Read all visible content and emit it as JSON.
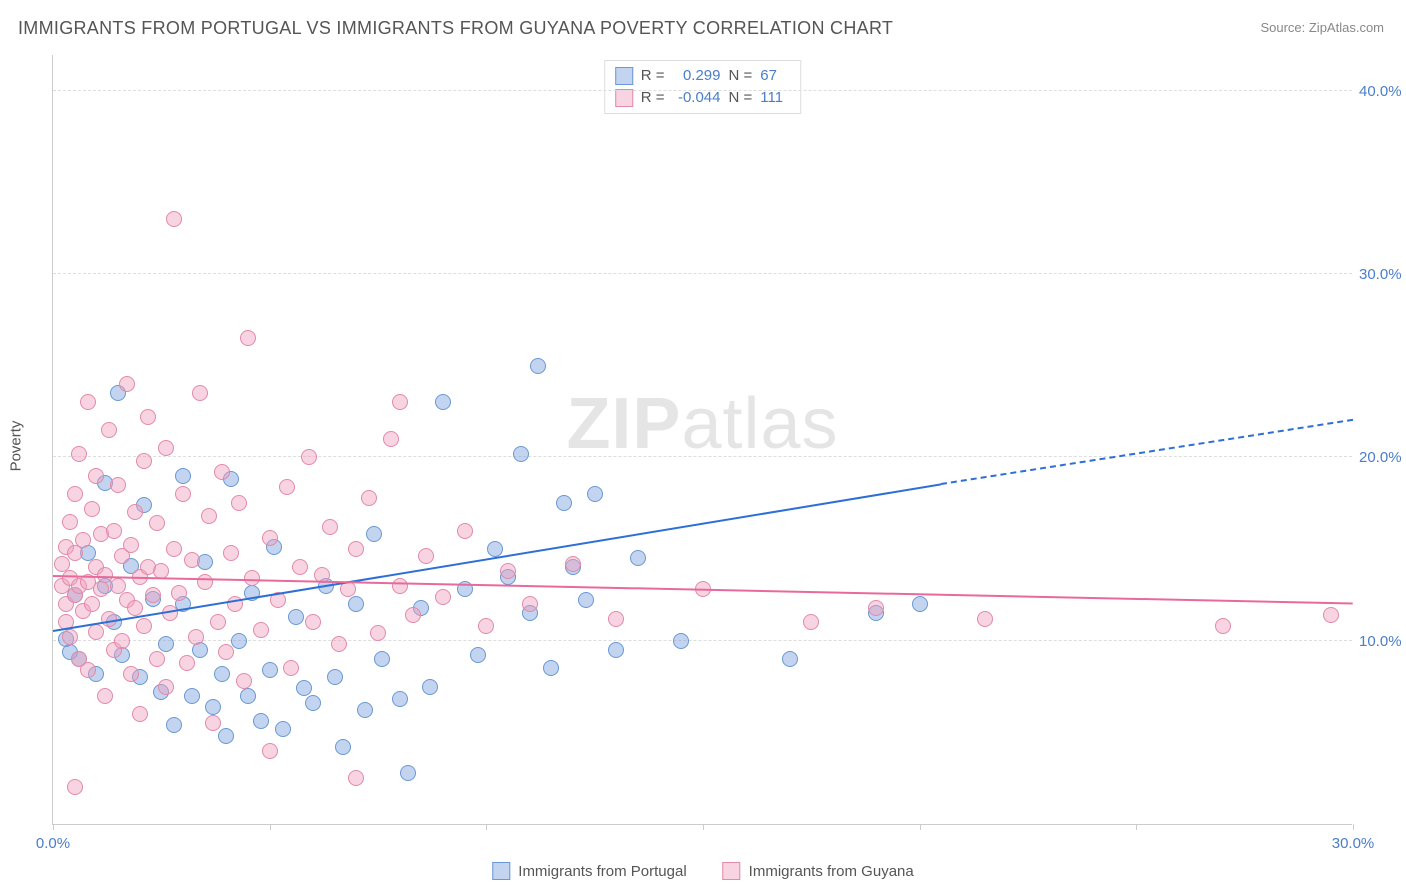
{
  "title": "IMMIGRANTS FROM PORTUGAL VS IMMIGRANTS FROM GUYANA POVERTY CORRELATION CHART",
  "source_label": "Source: ZipAtlas.com",
  "ylabel": "Poverty",
  "watermark_a": "ZIP",
  "watermark_b": "atlas",
  "chart": {
    "type": "scatter",
    "background_color": "#ffffff",
    "grid_color": "#dddddd",
    "axis_color": "#cccccc",
    "text_color": "#555555",
    "value_color": "#4a7ec9",
    "xlim": [
      0,
      30
    ],
    "ylim": [
      0,
      42
    ],
    "yticks": [
      {
        "v": 10,
        "label": "10.0%"
      },
      {
        "v": 20,
        "label": "20.0%"
      },
      {
        "v": 30,
        "label": "30.0%"
      },
      {
        "v": 40,
        "label": "40.0%"
      }
    ],
    "xtick_positions": [
      0,
      5,
      10,
      15,
      20,
      25,
      30
    ],
    "xtick_labels": {
      "0": "0.0%",
      "30": "30.0%"
    },
    "point_radius": 8,
    "point_border_width": 1,
    "series": [
      {
        "id": "portugal",
        "label": "Immigrants from Portugal",
        "fill": "rgba(120,160,220,0.45)",
        "stroke": "#6a98d4",
        "line_color": "#2e6fd6",
        "stats": {
          "R_label": "R =",
          "R": "0.299",
          "N_label": "N =",
          "N": "67"
        },
        "trend": {
          "x1": 0,
          "y1": 10.5,
          "x2": 20.5,
          "y2": 18.5,
          "dash_x2": 30,
          "dash_y2": 22.0
        },
        "points": [
          [
            0.3,
            10.1
          ],
          [
            0.4,
            9.4
          ],
          [
            0.5,
            12.5
          ],
          [
            0.6,
            9.0
          ],
          [
            0.8,
            14.8
          ],
          [
            1.0,
            8.2
          ],
          [
            1.2,
            13.0
          ],
          [
            1.2,
            18.6
          ],
          [
            1.4,
            11.0
          ],
          [
            1.5,
            23.5
          ],
          [
            1.6,
            9.2
          ],
          [
            1.8,
            14.1
          ],
          [
            2.0,
            8.0
          ],
          [
            2.1,
            17.4
          ],
          [
            2.3,
            12.3
          ],
          [
            2.5,
            7.2
          ],
          [
            2.6,
            9.8
          ],
          [
            2.8,
            5.4
          ],
          [
            3.0,
            19.0
          ],
          [
            3.0,
            12.0
          ],
          [
            3.2,
            7.0
          ],
          [
            3.4,
            9.5
          ],
          [
            3.5,
            14.3
          ],
          [
            3.7,
            6.4
          ],
          [
            3.9,
            8.2
          ],
          [
            4.0,
            4.8
          ],
          [
            4.1,
            18.8
          ],
          [
            4.3,
            10.0
          ],
          [
            4.5,
            7.0
          ],
          [
            4.6,
            12.6
          ],
          [
            4.8,
            5.6
          ],
          [
            5.0,
            8.4
          ],
          [
            5.1,
            15.1
          ],
          [
            5.3,
            5.2
          ],
          [
            5.6,
            11.3
          ],
          [
            5.8,
            7.4
          ],
          [
            6.0,
            6.6
          ],
          [
            6.3,
            13.0
          ],
          [
            6.5,
            8.0
          ],
          [
            6.7,
            4.2
          ],
          [
            7.0,
            12.0
          ],
          [
            7.2,
            6.2
          ],
          [
            7.4,
            15.8
          ],
          [
            7.6,
            9.0
          ],
          [
            8.0,
            6.8
          ],
          [
            8.2,
            2.8
          ],
          [
            8.5,
            11.8
          ],
          [
            8.7,
            7.5
          ],
          [
            9.0,
            23.0
          ],
          [
            9.5,
            12.8
          ],
          [
            9.8,
            9.2
          ],
          [
            10.2,
            15.0
          ],
          [
            10.5,
            13.5
          ],
          [
            10.8,
            20.2
          ],
          [
            11.0,
            11.5
          ],
          [
            11.2,
            25.0
          ],
          [
            11.5,
            8.5
          ],
          [
            11.8,
            17.5
          ],
          [
            12.0,
            14.0
          ],
          [
            12.3,
            12.2
          ],
          [
            12.5,
            18.0
          ],
          [
            13.0,
            9.5
          ],
          [
            13.5,
            14.5
          ],
          [
            14.5,
            10.0
          ],
          [
            17.0,
            9.0
          ],
          [
            19.0,
            11.5
          ],
          [
            20.0,
            12.0
          ]
        ]
      },
      {
        "id": "guyana",
        "label": "Immigrants from Guyana",
        "fill": "rgba(240,160,190,0.45)",
        "stroke": "#e28aa8",
        "line_color": "#e86a9a",
        "stats": {
          "R_label": "R =",
          "R": "-0.044",
          "N_label": "N =",
          "N": "111"
        },
        "trend": {
          "x1": 0,
          "y1": 13.5,
          "x2": 30,
          "y2": 12.0
        },
        "points": [
          [
            0.2,
            13.0
          ],
          [
            0.2,
            14.2
          ],
          [
            0.3,
            12.0
          ],
          [
            0.3,
            15.1
          ],
          [
            0.3,
            11.0
          ],
          [
            0.4,
            16.5
          ],
          [
            0.4,
            13.4
          ],
          [
            0.4,
            10.2
          ],
          [
            0.5,
            18.0
          ],
          [
            0.5,
            12.5
          ],
          [
            0.5,
            14.8
          ],
          [
            0.6,
            9.0
          ],
          [
            0.6,
            13.0
          ],
          [
            0.6,
            20.2
          ],
          [
            0.7,
            11.6
          ],
          [
            0.7,
            15.5
          ],
          [
            0.8,
            13.2
          ],
          [
            0.8,
            8.4
          ],
          [
            0.8,
            23.0
          ],
          [
            0.9,
            12.0
          ],
          [
            0.9,
            17.2
          ],
          [
            1.0,
            14.0
          ],
          [
            1.0,
            10.5
          ],
          [
            1.0,
            19.0
          ],
          [
            1.1,
            12.8
          ],
          [
            1.1,
            15.8
          ],
          [
            1.2,
            7.0
          ],
          [
            1.2,
            13.6
          ],
          [
            1.3,
            21.5
          ],
          [
            1.3,
            11.2
          ],
          [
            1.4,
            16.0
          ],
          [
            1.4,
            9.5
          ],
          [
            1.5,
            13.0
          ],
          [
            1.5,
            18.5
          ],
          [
            1.6,
            10.0
          ],
          [
            1.6,
            14.6
          ],
          [
            1.7,
            12.2
          ],
          [
            1.7,
            24.0
          ],
          [
            1.8,
            8.2
          ],
          [
            1.8,
            15.2
          ],
          [
            1.9,
            11.8
          ],
          [
            1.9,
            17.0
          ],
          [
            2.0,
            13.5
          ],
          [
            2.0,
            6.0
          ],
          [
            2.1,
            19.8
          ],
          [
            2.1,
            10.8
          ],
          [
            2.2,
            14.0
          ],
          [
            2.2,
            22.2
          ],
          [
            2.3,
            12.5
          ],
          [
            2.4,
            16.4
          ],
          [
            2.4,
            9.0
          ],
          [
            2.5,
            13.8
          ],
          [
            2.6,
            7.5
          ],
          [
            2.6,
            20.5
          ],
          [
            2.7,
            11.5
          ],
          [
            2.8,
            15.0
          ],
          [
            2.8,
            33.0
          ],
          [
            2.9,
            12.6
          ],
          [
            3.0,
            18.0
          ],
          [
            3.1,
            8.8
          ],
          [
            3.2,
            14.4
          ],
          [
            3.3,
            10.2
          ],
          [
            3.4,
            23.5
          ],
          [
            3.5,
            13.2
          ],
          [
            3.6,
            16.8
          ],
          [
            3.7,
            5.5
          ],
          [
            3.8,
            11.0
          ],
          [
            3.9,
            19.2
          ],
          [
            4.0,
            9.4
          ],
          [
            4.1,
            14.8
          ],
          [
            4.2,
            12.0
          ],
          [
            4.3,
            17.5
          ],
          [
            4.4,
            7.8
          ],
          [
            4.5,
            26.5
          ],
          [
            4.6,
            13.4
          ],
          [
            4.8,
            10.6
          ],
          [
            5.0,
            15.6
          ],
          [
            5.0,
            4.0
          ],
          [
            5.2,
            12.2
          ],
          [
            5.4,
            18.4
          ],
          [
            5.5,
            8.5
          ],
          [
            5.7,
            14.0
          ],
          [
            5.9,
            20.0
          ],
          [
            6.0,
            11.0
          ],
          [
            6.2,
            13.6
          ],
          [
            6.4,
            16.2
          ],
          [
            6.6,
            9.8
          ],
          [
            6.8,
            12.8
          ],
          [
            7.0,
            2.5
          ],
          [
            7.0,
            15.0
          ],
          [
            7.3,
            17.8
          ],
          [
            7.5,
            10.4
          ],
          [
            7.8,
            21.0
          ],
          [
            8.0,
            13.0
          ],
          [
            8.0,
            23.0
          ],
          [
            8.3,
            11.4
          ],
          [
            8.6,
            14.6
          ],
          [
            9.0,
            12.4
          ],
          [
            9.5,
            16.0
          ],
          [
            10.0,
            10.8
          ],
          [
            10.5,
            13.8
          ],
          [
            11.0,
            12.0
          ],
          [
            12.0,
            14.2
          ],
          [
            13.0,
            11.2
          ],
          [
            15.0,
            12.8
          ],
          [
            17.5,
            11.0
          ],
          [
            19.0,
            11.8
          ],
          [
            21.5,
            11.2
          ],
          [
            27.0,
            10.8
          ],
          [
            29.5,
            11.4
          ],
          [
            0.5,
            2.0
          ]
        ]
      }
    ]
  },
  "legend_bottom": [
    {
      "series": "portugal"
    },
    {
      "series": "guyana"
    }
  ]
}
